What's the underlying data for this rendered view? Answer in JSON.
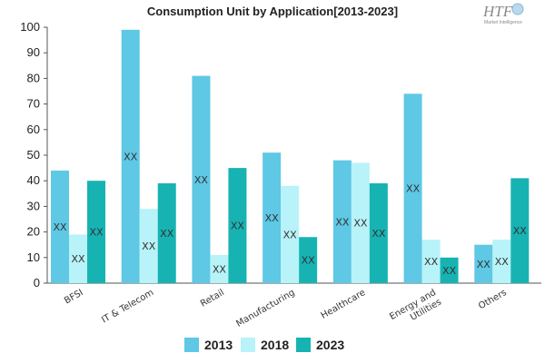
{
  "logo": {
    "text": "HTF",
    "subtext": "Market Intelligence"
  },
  "chart_data": {
    "type": "bar",
    "title": "Consumption Unit by  Application[2013-2023]",
    "categories": [
      "BFSI",
      "IT & Telecom",
      "Retail",
      "Manufacturing",
      "Healthcare",
      "Energy and Utilities",
      "Others"
    ],
    "series": [
      {
        "name": "2013",
        "color": "#5ec8e5",
        "values": [
          44,
          99,
          81,
          51,
          48,
          74,
          15
        ]
      },
      {
        "name": "2018",
        "color": "#b7f3f8",
        "values": [
          19,
          29,
          11,
          38,
          47,
          17,
          17
        ]
      },
      {
        "name": "2023",
        "color": "#17b3b3",
        "values": [
          40,
          39,
          45,
          18,
          39,
          10,
          41
        ]
      }
    ],
    "data_label": "XX",
    "ylim": [
      0,
      100
    ],
    "yticks": [
      0,
      10,
      20,
      30,
      40,
      50,
      60,
      70,
      80,
      90,
      100
    ],
    "grid": false,
    "legend": "bottom",
    "xlabel": "",
    "ylabel": ""
  }
}
